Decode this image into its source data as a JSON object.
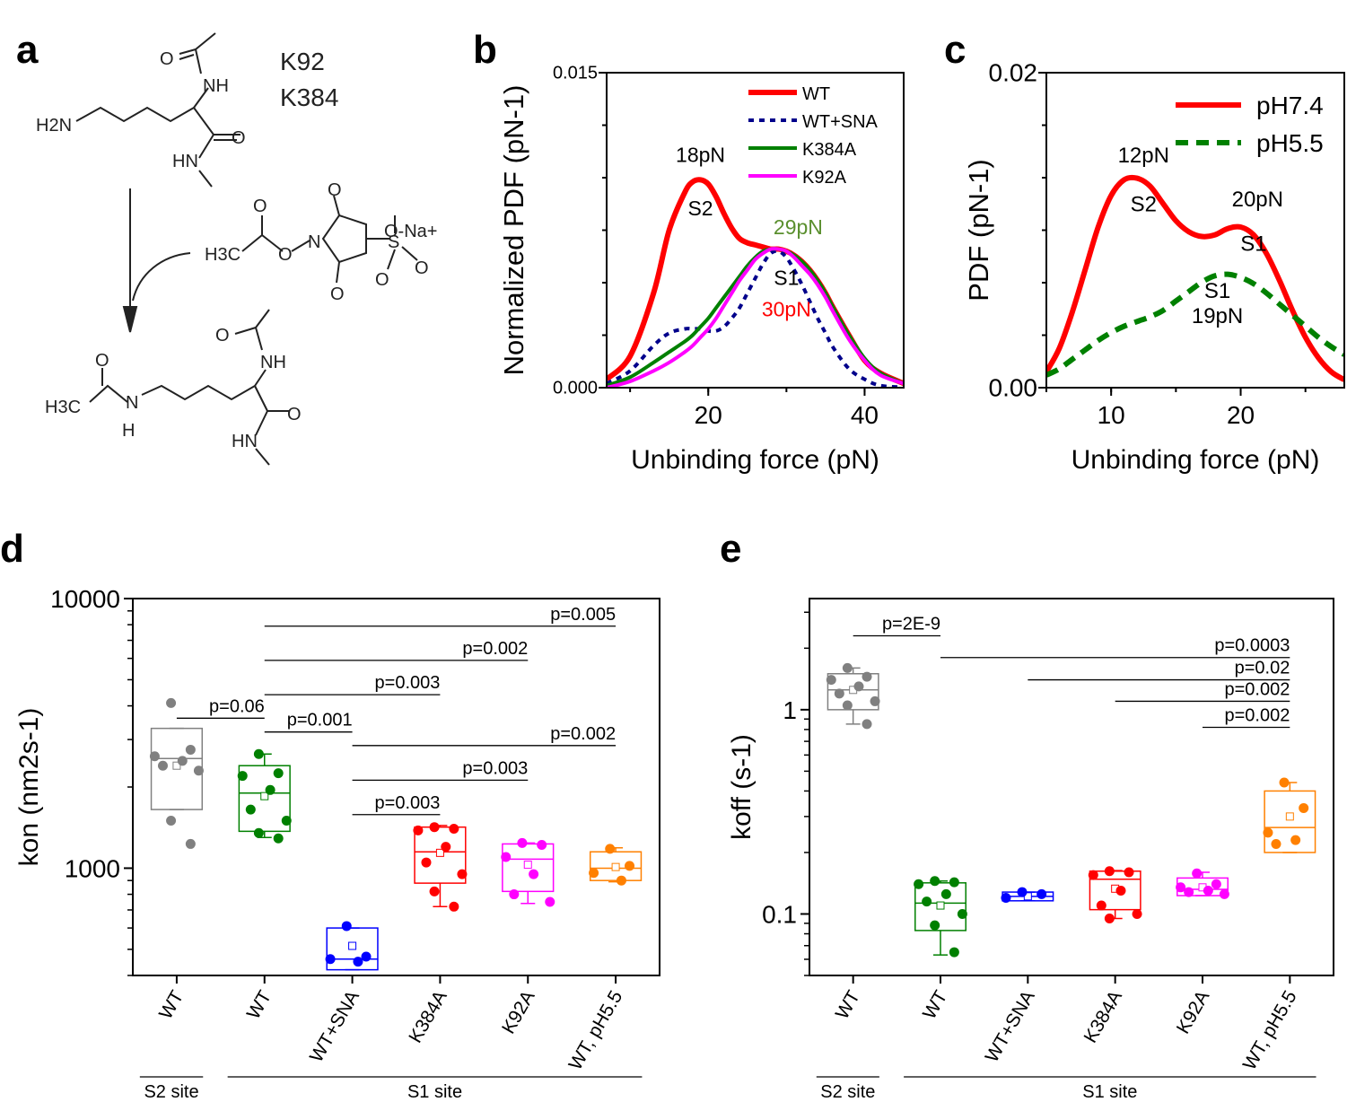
{
  "panels": {
    "a": "a",
    "b": "b",
    "c": "c",
    "d": "d",
    "e": "e"
  },
  "panel_a": {
    "residues": [
      "K92",
      "K384"
    ],
    "atoms": {
      "o": "O",
      "nh": "NH",
      "h2n": "H2N",
      "hn": "HN",
      "h3c": "H3C",
      "n": "N",
      "na": "O-Na+",
      "s": "S",
      "h": "H"
    }
  },
  "chart_data": [
    {
      "id": "b",
      "type": "line",
      "title": "",
      "xlabel": "Unbinding force (pN)",
      "ylabel": "Normalized PDF (pN-1)",
      "xlim": [
        7,
        45
      ],
      "ylim": [
        0,
        0.015
      ],
      "xticks": [
        "20",
        "40"
      ],
      "yticks": [
        "0.000",
        "0.015"
      ],
      "series": [
        {
          "name": "WT",
          "color": "#ff0000",
          "style": "solid",
          "x": [
            7,
            10,
            13,
            15,
            17,
            18,
            19,
            20,
            21,
            22,
            23,
            24,
            25,
            26,
            27,
            28,
            29,
            30,
            31,
            32,
            33,
            34,
            35,
            36,
            38,
            40,
            42,
            45
          ],
          "y": [
            0.0004,
            0.0015,
            0.0045,
            0.0075,
            0.0093,
            0.0098,
            0.0099,
            0.0097,
            0.0091,
            0.0083,
            0.0076,
            0.0071,
            0.0069,
            0.0068,
            0.0067,
            0.0066,
            0.0066,
            0.0065,
            0.0063,
            0.006,
            0.0056,
            0.0051,
            0.0045,
            0.0038,
            0.0025,
            0.0013,
            0.0007,
            0.0002
          ]
        },
        {
          "name": "WT+SNA",
          "color": "#00008b",
          "style": "dotted",
          "x": [
            7,
            10,
            13,
            15,
            17,
            18,
            19,
            20,
            21,
            22,
            23,
            24,
            25,
            26,
            27,
            28,
            29,
            30,
            31,
            32,
            33,
            34,
            35,
            36,
            38,
            40,
            42,
            45
          ],
          "y": [
            0.0002,
            0.0008,
            0.002,
            0.0026,
            0.0028,
            0.0028,
            0.0028,
            0.0027,
            0.0027,
            0.0029,
            0.0033,
            0.0038,
            0.0045,
            0.0052,
            0.0059,
            0.0064,
            0.0065,
            0.0062,
            0.0056,
            0.0049,
            0.0041,
            0.0033,
            0.0026,
            0.0019,
            0.0009,
            0.0004,
            0.0001,
            2e-05
          ]
        },
        {
          "name": "K384A",
          "color": "#008000",
          "style": "solid",
          "x": [
            7,
            10,
            13,
            15,
            17,
            18,
            19,
            20,
            21,
            22,
            23,
            24,
            25,
            26,
            27,
            28,
            29,
            30,
            31,
            32,
            33,
            34,
            35,
            36,
            38,
            40,
            42,
            45
          ],
          "y": [
            0.0001,
            0.0005,
            0.0012,
            0.0017,
            0.0022,
            0.0025,
            0.0029,
            0.0033,
            0.0038,
            0.0043,
            0.0048,
            0.0053,
            0.0058,
            0.0062,
            0.0065,
            0.0066,
            0.0066,
            0.0065,
            0.0063,
            0.006,
            0.0056,
            0.0051,
            0.0045,
            0.0038,
            0.0025,
            0.0014,
            0.0007,
            0.0002
          ]
        },
        {
          "name": "K92A",
          "color": "#ff00ff",
          "style": "solid",
          "x": [
            7,
            10,
            13,
            15,
            17,
            18,
            19,
            20,
            21,
            22,
            23,
            24,
            25,
            26,
            27,
            28,
            29,
            30,
            31,
            32,
            33,
            34,
            35,
            36,
            38,
            40,
            42,
            45
          ],
          "y": [
            0,
            0.0003,
            0.0008,
            0.0012,
            0.0017,
            0.002,
            0.0024,
            0.0028,
            0.0033,
            0.0039,
            0.0045,
            0.0051,
            0.0056,
            0.0061,
            0.0064,
            0.0066,
            0.0066,
            0.0065,
            0.0062,
            0.0058,
            0.0054,
            0.0049,
            0.0043,
            0.0036,
            0.0023,
            0.0013,
            0.0006,
            0.0002
          ]
        }
      ],
      "annotations": [
        {
          "text": "18pN",
          "x": 19,
          "y": 0.01075,
          "color": "#000000"
        },
        {
          "text": "S2",
          "x": 19,
          "y": 0.0082,
          "color": "#000000"
        },
        {
          "text": "29pN",
          "x": 31.5,
          "y": 0.0073,
          "color": "#5a8f2e"
        },
        {
          "text": "S1",
          "x": 30,
          "y": 0.0049,
          "color": "#000000"
        },
        {
          "text": "30pN",
          "x": 30,
          "y": 0.0034,
          "color": "#ff0000"
        }
      ],
      "legend_position": "top-right"
    },
    {
      "id": "c",
      "type": "line",
      "title": "",
      "xlabel": "Unbinding force (pN)",
      "ylabel": "PDF (pN-1)",
      "xlim": [
        5,
        28
      ],
      "ylim": [
        0,
        0.02
      ],
      "xticks": [
        "10",
        "20"
      ],
      "yticks": [
        "0.00",
        "0.02"
      ],
      "series": [
        {
          "name": "pH7.4",
          "color": "#ff0000",
          "style": "solid",
          "x": [
            5,
            6,
            7,
            8,
            9,
            10,
            11,
            12,
            13,
            14,
            15,
            16,
            17,
            18,
            19,
            20,
            21,
            22,
            23,
            24,
            25,
            26,
            27,
            28
          ],
          "y": [
            0.001,
            0.0025,
            0.0048,
            0.0075,
            0.0102,
            0.0122,
            0.0132,
            0.0133,
            0.0128,
            0.0117,
            0.0106,
            0.0099,
            0.0096,
            0.0097,
            0.0101,
            0.0102,
            0.0097,
            0.0085,
            0.0068,
            0.0049,
            0.0032,
            0.0019,
            0.001,
            0.0005
          ]
        },
        {
          "name": "pH5.5",
          "color": "#008000",
          "style": "dashed",
          "x": [
            5,
            6,
            7,
            8,
            9,
            10,
            11,
            12,
            13,
            14,
            15,
            16,
            17,
            18,
            19,
            20,
            21,
            22,
            23,
            24,
            25,
            26,
            27,
            28
          ],
          "y": [
            0.0008,
            0.0012,
            0.0018,
            0.0024,
            0.003,
            0.0035,
            0.0039,
            0.0042,
            0.0045,
            0.0049,
            0.0055,
            0.0061,
            0.0067,
            0.0071,
            0.0072,
            0.007,
            0.0066,
            0.006,
            0.0053,
            0.0046,
            0.0039,
            0.0032,
            0.0026,
            0.0021
          ]
        }
      ],
      "annotations": [
        {
          "text": "12pN",
          "x": 12.5,
          "y": 0.0143,
          "color": "#000000"
        },
        {
          "text": "S2",
          "x": 12.5,
          "y": 0.0112,
          "color": "#000000"
        },
        {
          "text": "20pN",
          "x": 21.3,
          "y": 0.0115,
          "color": "#000000"
        },
        {
          "text": "S1",
          "x": 21,
          "y": 0.0087,
          "color": "#000000"
        },
        {
          "text": "S1",
          "x": 18.2,
          "y": 0.0057,
          "color": "#000000"
        },
        {
          "text": "19pN",
          "x": 18.2,
          "y": 0.0041,
          "color": "#000000"
        }
      ],
      "legend_position": "top-right"
    },
    {
      "id": "d",
      "type": "box",
      "ylabel": "kon (nm2s-1)",
      "yscale": "log",
      "ylim": [
        400,
        10000
      ],
      "yticks": [
        "1000",
        "10000"
      ],
      "categories": [
        "WT",
        "WT",
        "WT+SNA",
        "K384A",
        "K92A",
        "WT, pH5.5"
      ],
      "colors": [
        "#808080",
        "#008000",
        "#0000ff",
        "#ff0000",
        "#ff00ff",
        "#ff8000"
      ],
      "boxes": [
        {
          "q1": 1650,
          "median": 2550,
          "q3": 3300,
          "mean": 2400,
          "whisker_low": 1650,
          "whisker_high": 3300,
          "points": [
            4100,
            2750,
            2600,
            2500,
            2400,
            2300,
            1500,
            1230
          ]
        },
        {
          "q1": 1370,
          "median": 1900,
          "q3": 2400,
          "mean": 1850,
          "whisker_low": 1300,
          "whisker_high": 2650,
          "points": [
            2650,
            2250,
            2200,
            1950,
            1650,
            1500,
            1350,
            1290
          ]
        },
        {
          "q1": 420,
          "median": 460,
          "q3": 600,
          "mean": 515,
          "whisker_low": 420,
          "whisker_high": 600,
          "points": [
            610,
            470,
            460,
            450
          ]
        },
        {
          "q1": 880,
          "median": 1150,
          "q3": 1420,
          "mean": 1140,
          "whisker_low": 720,
          "whisker_high": 1440,
          "points": [
            1420,
            1400,
            1380,
            1200,
            1050,
            950,
            820,
            720
          ]
        },
        {
          "q1": 820,
          "median": 1080,
          "q3": 1230,
          "mean": 1030,
          "whisker_low": 740,
          "whisker_high": 1240,
          "points": [
            1240,
            1220,
            1100,
            950,
            800,
            750
          ]
        },
        {
          "q1": 900,
          "median": 1000,
          "q3": 1150,
          "mean": 1010,
          "whisker_low": 890,
          "whisker_high": 1190,
          "points": [
            1180,
            1020,
            960,
            900
          ]
        }
      ],
      "comparisons": [
        {
          "from": 0,
          "to": 1,
          "label": "p=0.06",
          "y": 3600
        },
        {
          "from": 1,
          "to": 2,
          "label": "p=0.001",
          "y": 3200
        },
        {
          "from": 1,
          "to": 3,
          "label": "p=0.003",
          "y": 4400
        },
        {
          "from": 1,
          "to": 4,
          "label": "p=0.002",
          "y": 5900
        },
        {
          "from": 1,
          "to": 5,
          "label": "p=0.005",
          "y": 7900
        },
        {
          "from": 2,
          "to": 3,
          "label": "p=0.003",
          "y": 1580
        },
        {
          "from": 2,
          "to": 4,
          "label": "p=0.003",
          "y": 2120
        },
        {
          "from": 2,
          "to": 5,
          "label": "p=0.002",
          "y": 2850
        }
      ],
      "groups": [
        {
          "label": "S2 site",
          "from": 0,
          "to": 0
        },
        {
          "label": "S1 site",
          "from": 1,
          "to": 5
        }
      ]
    },
    {
      "id": "e",
      "type": "box",
      "ylabel": "koff (s-1)",
      "yscale": "log",
      "ylim": [
        0.05,
        3.5
      ],
      "yticks": [
        "0.1",
        "1"
      ],
      "categories": [
        "WT",
        "WT",
        "WT+SNA",
        "K384A",
        "K92A",
        "WT, pH5.5"
      ],
      "colors": [
        "#808080",
        "#008000",
        "#0000ff",
        "#ff0000",
        "#ff00ff",
        "#ff8000"
      ],
      "boxes": [
        {
          "q1": 1.0,
          "median": 1.25,
          "q3": 1.5,
          "mean": 1.25,
          "whisker_low": 0.85,
          "whisker_high": 1.6,
          "points": [
            1.6,
            1.45,
            1.4,
            1.3,
            1.2,
            1.1,
            1.05,
            0.85
          ]
        },
        {
          "q1": 0.083,
          "median": 0.113,
          "q3": 0.142,
          "mean": 0.11,
          "whisker_low": 0.063,
          "whisker_high": 0.145,
          "points": [
            0.145,
            0.143,
            0.14,
            0.125,
            0.115,
            0.1,
            0.088,
            0.065
          ]
        },
        {
          "q1": 0.116,
          "median": 0.122,
          "q3": 0.128,
          "mean": 0.122,
          "whisker_low": 0.116,
          "whisker_high": 0.128,
          "points": [
            0.128,
            0.125,
            0.12
          ]
        },
        {
          "q1": 0.105,
          "median": 0.148,
          "q3": 0.162,
          "mean": 0.133,
          "whisker_low": 0.095,
          "whisker_high": 0.163,
          "points": [
            0.162,
            0.16,
            0.155,
            0.13,
            0.11,
            0.1,
            0.095
          ]
        },
        {
          "q1": 0.123,
          "median": 0.132,
          "q3": 0.15,
          "mean": 0.135,
          "whisker_low": 0.123,
          "whisker_high": 0.16,
          "points": [
            0.158,
            0.14,
            0.135,
            0.13,
            0.128,
            0.125
          ]
        },
        {
          "q1": 0.2,
          "median": 0.265,
          "q3": 0.4,
          "mean": 0.3,
          "whisker_low": 0.2,
          "whisker_high": 0.44,
          "points": [
            0.44,
            0.33,
            0.25,
            0.23,
            0.22
          ]
        }
      ],
      "comparisons": [
        {
          "from": 0,
          "to": 1,
          "label": "p=2E-9",
          "y": 2.3
        },
        {
          "from": 1,
          "to": 5,
          "label": "p=0.0003",
          "y": 1.8
        },
        {
          "from": 2,
          "to": 5,
          "label": "p=0.02",
          "y": 1.4
        },
        {
          "from": 3,
          "to": 5,
          "label": "p=0.002",
          "y": 1.1
        },
        {
          "from": 4,
          "to": 5,
          "label": "p=0.002",
          "y": 0.82
        }
      ],
      "groups": [
        {
          "label": "S2 site",
          "from": 0,
          "to": 0
        },
        {
          "label": "S1 site",
          "from": 1,
          "to": 5
        }
      ]
    }
  ]
}
